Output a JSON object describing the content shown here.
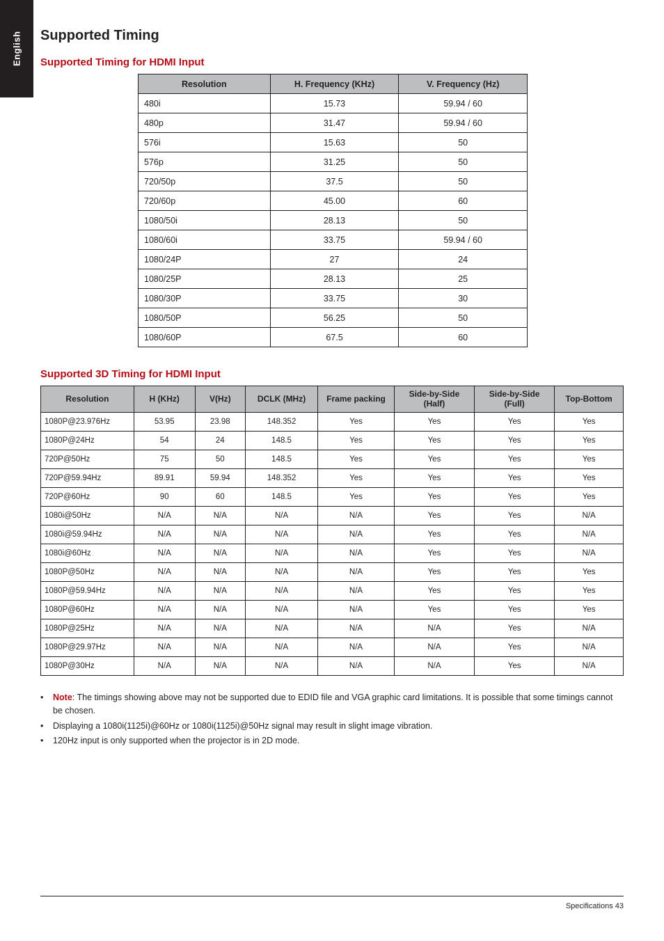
{
  "sideTab": "English",
  "title": "Supported Timing",
  "section1": {
    "heading": "Supported Timing for HDMI Input",
    "columns": [
      "Resolution",
      "H. Frequency (KHz)",
      "V. Frequency (Hz)"
    ],
    "rows": [
      [
        "480i",
        "15.73",
        "59.94 / 60"
      ],
      [
        "480p",
        "31.47",
        "59.94 / 60"
      ],
      [
        "576i",
        "15.63",
        "50"
      ],
      [
        "576p",
        "31.25",
        "50"
      ],
      [
        "720/50p",
        "37.5",
        "50"
      ],
      [
        "720/60p",
        "45.00",
        "60"
      ],
      [
        "1080/50i",
        "28.13",
        "50"
      ],
      [
        "1080/60i",
        "33.75",
        "59.94 / 60"
      ],
      [
        "1080/24P",
        "27",
        "24"
      ],
      [
        "1080/25P",
        "28.13",
        "25"
      ],
      [
        "1080/30P",
        "33.75",
        "30"
      ],
      [
        "1080/50P",
        "56.25",
        "50"
      ],
      [
        "1080/60P",
        "67.5",
        "60"
      ]
    ]
  },
  "section2": {
    "heading": "Supported 3D Timing for HDMI Input",
    "columns": [
      "Resolution",
      "H (KHz)",
      "V(Hz)",
      "DCLK (MHz)",
      "Frame packing",
      "Side-by-Side (Half)",
      "Side-by-Side (Full)",
      "Top-Bottom"
    ],
    "rows": [
      [
        "1080P@23.976Hz",
        "53.95",
        "23.98",
        "148.352",
        "Yes",
        "Yes",
        "Yes",
        "Yes"
      ],
      [
        "1080P@24Hz",
        "54",
        "24",
        "148.5",
        "Yes",
        "Yes",
        "Yes",
        "Yes"
      ],
      [
        "720P@50Hz",
        "75",
        "50",
        "148.5",
        "Yes",
        "Yes",
        "Yes",
        "Yes"
      ],
      [
        "720P@59.94Hz",
        "89.91",
        "59.94",
        "148.352",
        "Yes",
        "Yes",
        "Yes",
        "Yes"
      ],
      [
        "720P@60Hz",
        "90",
        "60",
        "148.5",
        "Yes",
        "Yes",
        "Yes",
        "Yes"
      ],
      [
        "1080i@50Hz",
        "N/A",
        "N/A",
        "N/A",
        "N/A",
        "Yes",
        "Yes",
        "N/A"
      ],
      [
        "1080i@59.94Hz",
        "N/A",
        "N/A",
        "N/A",
        "N/A",
        "Yes",
        "Yes",
        "N/A"
      ],
      [
        "1080i@60Hz",
        "N/A",
        "N/A",
        "N/A",
        "N/A",
        "Yes",
        "Yes",
        "N/A"
      ],
      [
        "1080P@50Hz",
        "N/A",
        "N/A",
        "N/A",
        "N/A",
        "Yes",
        "Yes",
        "Yes"
      ],
      [
        "1080P@59.94Hz",
        "N/A",
        "N/A",
        "N/A",
        "N/A",
        "Yes",
        "Yes",
        "Yes"
      ],
      [
        "1080P@60Hz",
        "N/A",
        "N/A",
        "N/A",
        "N/A",
        "Yes",
        "Yes",
        "Yes"
      ],
      [
        "1080P@25Hz",
        "N/A",
        "N/A",
        "N/A",
        "N/A",
        "N/A",
        "Yes",
        "N/A"
      ],
      [
        "1080P@29.97Hz",
        "N/A",
        "N/A",
        "N/A",
        "N/A",
        "N/A",
        "Yes",
        "N/A"
      ],
      [
        "1080P@30Hz",
        "N/A",
        "N/A",
        "N/A",
        "N/A",
        "N/A",
        "Yes",
        "N/A"
      ]
    ]
  },
  "notes": [
    "The timings showing above may not be supported due to EDID file and VGA graphic card limitations. It is possible that some timings cannot be chosen.",
    "Displaying a 1080i(1125i)@60Hz or 1080i(1125i)@50Hz signal may result in slight image vibration.",
    "120Hz input is only supported when the projector is in 2D mode."
  ],
  "noteLabel": "Note",
  "footer": "Specifications    43"
}
